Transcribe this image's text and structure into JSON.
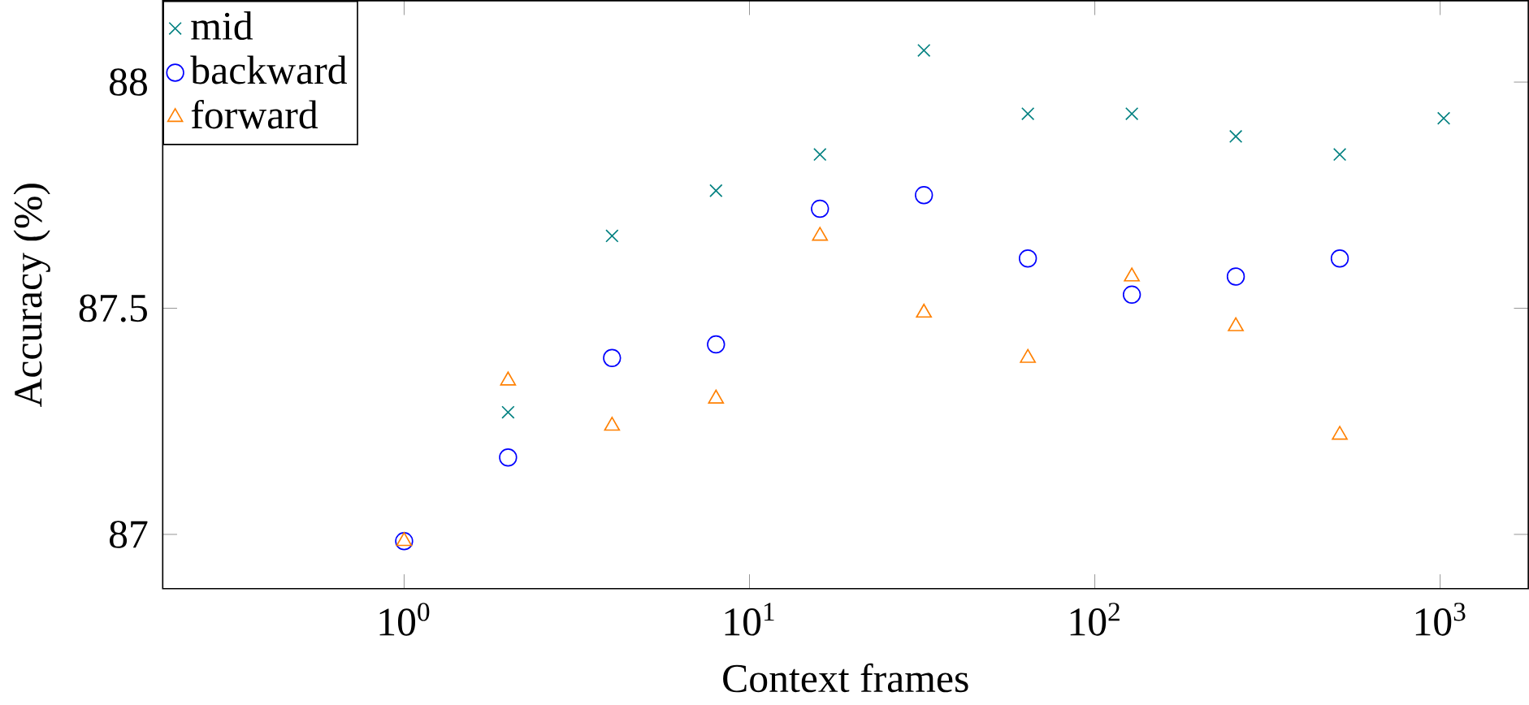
{
  "chart_data": {
    "type": "scatter",
    "xlabel": "Context frames",
    "ylabel": "Accuracy (%)",
    "log": "x",
    "xlim": [
      0.2,
      1800
    ],
    "ylim": [
      86.88,
      88.18
    ],
    "xticks": [
      {
        "value": 1,
        "label": "10$^{0}$"
      },
      {
        "value": 10,
        "label": "10$^{1}$"
      },
      {
        "value": 100,
        "label": "10$^{2}$"
      },
      {
        "value": 1000,
        "label": "10$^{3}$"
      }
    ],
    "yticks": [
      87,
      87.5,
      88
    ],
    "legend": "top left",
    "grid": false,
    "series": [
      {
        "name": "mid",
        "color": "#008080",
        "marker": "cross",
        "x": [
          2,
          4,
          8,
          16,
          32,
          64,
          128,
          256,
          512,
          1024
        ],
        "values": [
          87.27,
          87.66,
          87.76,
          87.84,
          88.07,
          87.93,
          87.93,
          87.88,
          87.84,
          87.92
        ]
      },
      {
        "name": "backward",
        "color": "#0000ff",
        "marker": "circle",
        "x": [
          1,
          2,
          4,
          8,
          16,
          32,
          64,
          128,
          256,
          512
        ],
        "values": [
          86.985,
          87.17,
          87.39,
          87.42,
          87.72,
          87.75,
          87.61,
          87.53,
          87.57,
          87.61
        ]
      },
      {
        "name": "forward",
        "color": "#ff8000",
        "marker": "triangle",
        "x": [
          1,
          2,
          4,
          8,
          16,
          32,
          64,
          128,
          256,
          512
        ],
        "values": [
          86.985,
          87.34,
          87.24,
          87.3,
          87.66,
          87.49,
          87.39,
          87.57,
          87.46,
          87.22
        ]
      }
    ]
  }
}
